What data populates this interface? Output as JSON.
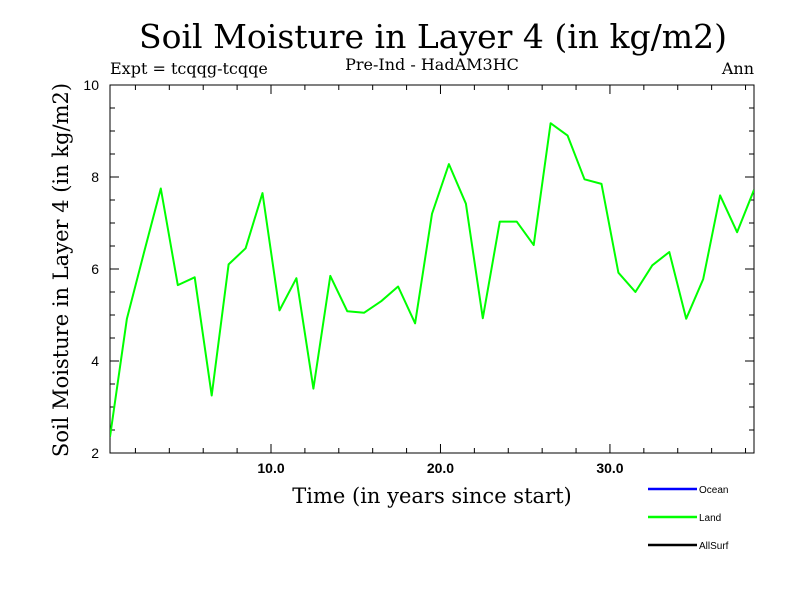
{
  "chart_data": {
    "type": "line",
    "title": "Soil Moisture in Layer 4 (in kg/m2)",
    "subtitle_left": "Expt = tcqqg-tcqqe",
    "subtitle_center": "Pre-Ind - HadAM3HC",
    "subtitle_right": "Ann",
    "xlabel": "Time (in years since start)",
    "ylabel": "Soil Moisture in Layer 4 (in kg/m2)",
    "xlim": [
      0.5,
      38.5
    ],
    "ylim": [
      2,
      10
    ],
    "x_ticks": [
      10,
      20,
      30
    ],
    "x_tick_labels": [
      "10.0",
      "20.0",
      "30.0"
    ],
    "y_ticks": [
      2,
      4,
      6,
      8,
      10
    ],
    "y_tick_labels": [
      "2",
      "4",
      "6",
      "8",
      "10"
    ],
    "grid": false,
    "legend_position": "bottom-right",
    "legend": [
      {
        "name": "Ocean",
        "color": "#0000ff"
      },
      {
        "name": "Land",
        "color": "#00ff00"
      },
      {
        "name": "AllSurf",
        "color": "#000000"
      }
    ],
    "series": [
      {
        "name": "Land",
        "color": "#00ff00",
        "x": [
          0.5,
          1.5,
          2.5,
          3.5,
          4.5,
          5.5,
          6.5,
          7.5,
          8.5,
          9.5,
          10.5,
          11.5,
          12.5,
          13.5,
          14.5,
          15.5,
          16.5,
          17.5,
          18.5,
          19.5,
          20.5,
          21.5,
          22.5,
          23.5,
          24.5,
          25.5,
          26.5,
          27.5,
          28.5,
          29.5,
          30.5,
          31.5,
          32.5,
          33.5,
          34.5,
          35.5,
          36.5,
          37.5,
          38.5
        ],
        "values": [
          2.35,
          4.92,
          6.35,
          7.75,
          5.65,
          5.82,
          3.25,
          6.1,
          6.45,
          7.65,
          5.1,
          5.8,
          3.4,
          5.85,
          5.08,
          5.05,
          5.3,
          5.62,
          4.82,
          7.2,
          8.28,
          7.42,
          4.93,
          7.03,
          7.03,
          6.52,
          9.17,
          8.9,
          7.95,
          7.85,
          5.92,
          5.5,
          6.08,
          6.37,
          4.92,
          5.78,
          7.6,
          6.8,
          7.72
        ]
      }
    ]
  }
}
